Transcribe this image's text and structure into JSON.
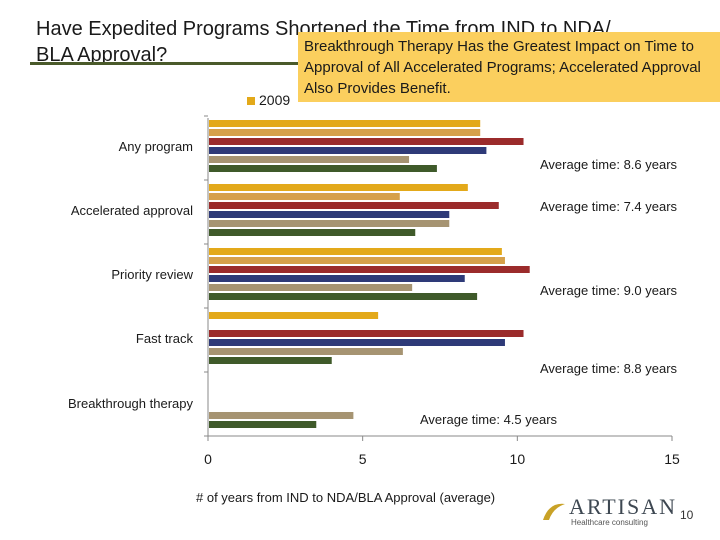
{
  "title": {
    "line1": "Have Expedited Programs Shortened the Time from IND to NDA/",
    "line2": "BLA Approval?"
  },
  "callout": {
    "text": "Breakthrough Therapy Has the Greatest Impact on Time to Approval of All Accelerated Programs; Accelerated Approval Also Provides Benefit."
  },
  "legend": {
    "first_entry_visible": "2009"
  },
  "logo": {
    "name": "ARTISAN",
    "tagline": "Healthcare consulting"
  },
  "page_number": "10",
  "chart_data": {
    "type": "bar",
    "orientation": "horizontal",
    "xlabel": "# of years from IND to NDA/BLA Approval (average)",
    "xlim": [
      0,
      15
    ],
    "xticks": [
      0,
      5,
      10,
      15
    ],
    "grid": false,
    "categories": [
      "Any program",
      "Accelerated approval",
      "Priority review",
      "Fast track",
      "Breakthrough therapy"
    ],
    "series": [
      {
        "name": "2009",
        "color": "#e3a91a",
        "values": [
          8.8,
          8.4,
          9.5,
          5.5,
          null
        ]
      },
      {
        "color": "#d6a04a",
        "values": [
          8.8,
          6.2,
          9.6,
          null,
          null
        ]
      },
      {
        "color": "#9b2b2b",
        "values": [
          10.2,
          9.4,
          10.4,
          10.2,
          null
        ]
      },
      {
        "color": "#2e3a78",
        "values": [
          9.0,
          7.8,
          8.3,
          9.6,
          null
        ]
      },
      {
        "color": "#a69472",
        "values": [
          6.5,
          7.8,
          6.6,
          6.3,
          4.7
        ]
      },
      {
        "color": "#3f5a2a",
        "values": [
          7.4,
          6.7,
          8.7,
          4.0,
          3.5
        ]
      }
    ],
    "annotations": [
      "Average time: 8.6 years",
      "Average time: 7.4 years",
      "Average time: 9.0 years",
      "Average time: 8.8 years",
      "Average time: 4.5 years"
    ]
  }
}
